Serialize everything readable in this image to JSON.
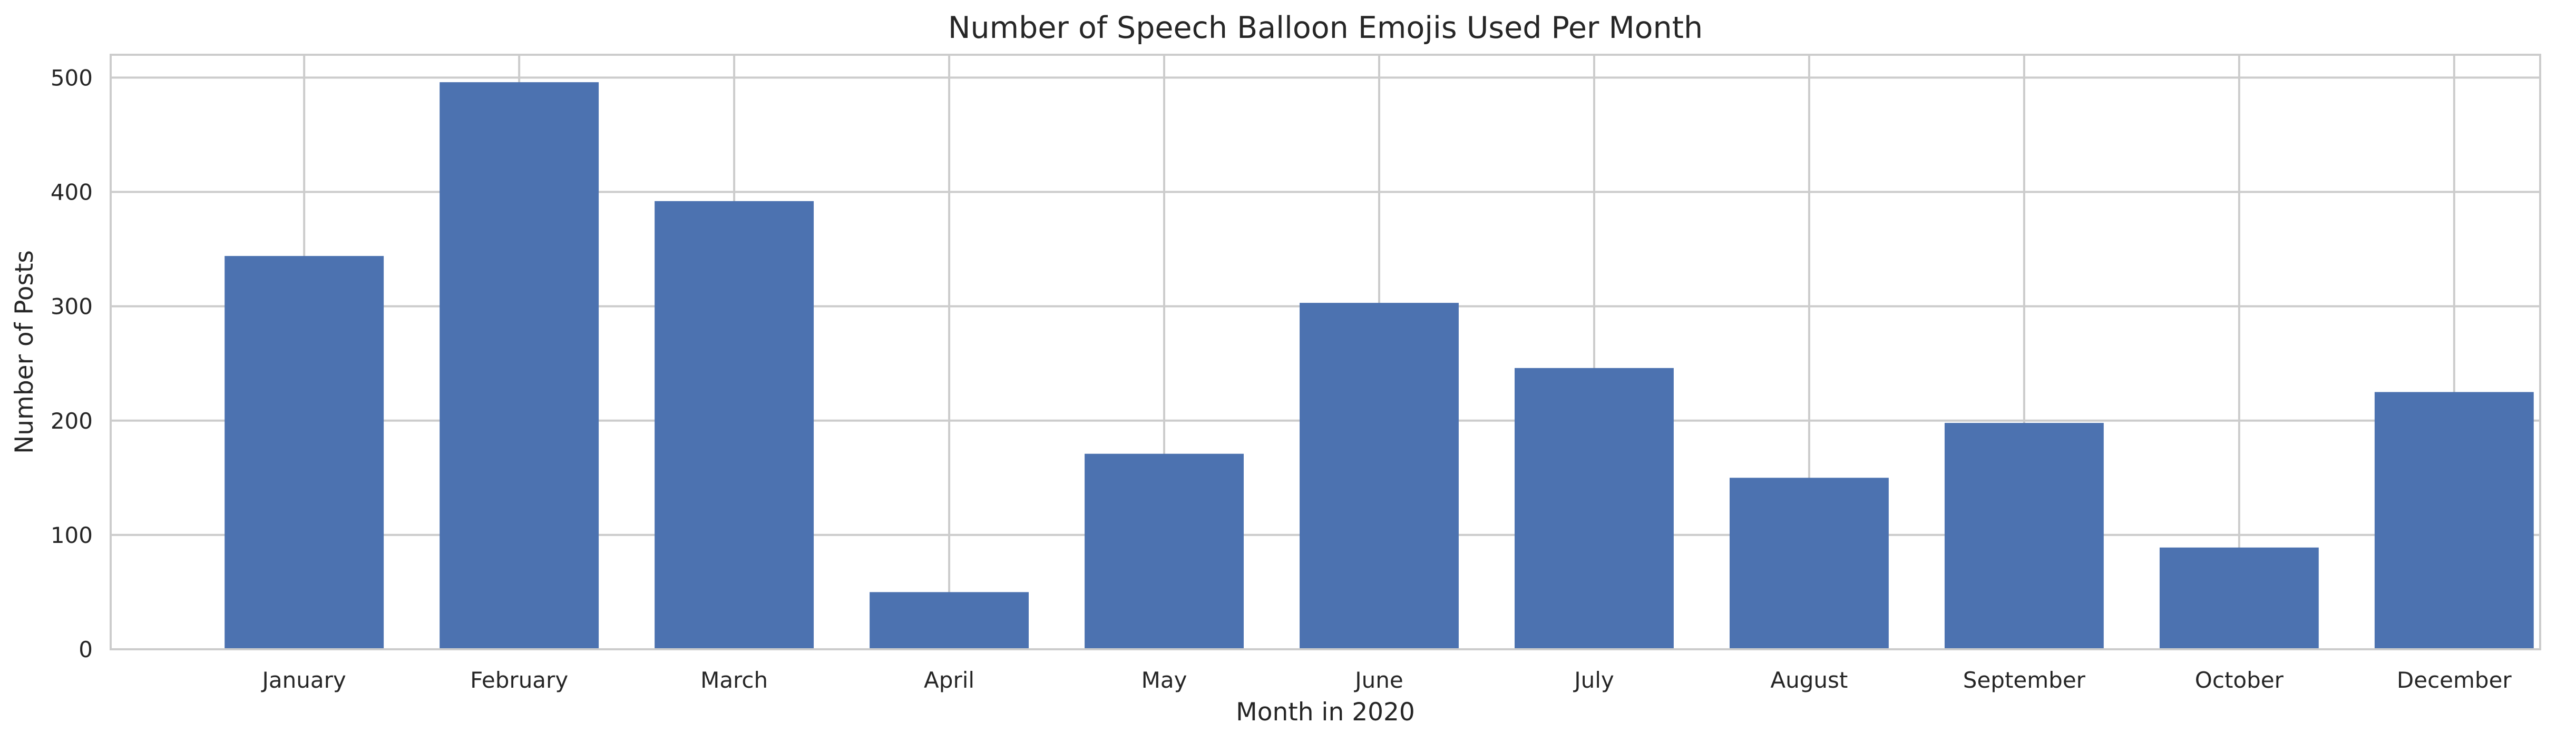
{
  "chart_data": {
    "type": "bar",
    "title": "Number of Speech Balloon Emojis Used Per Month",
    "xlabel": "Month in 2020",
    "ylabel": "Number of Posts",
    "categories": [
      "January",
      "February",
      "March",
      "April",
      "May",
      "June",
      "July",
      "August",
      "September",
      "October",
      "December"
    ],
    "values": [
      344,
      496,
      392,
      50,
      171,
      303,
      246,
      150,
      198,
      89,
      225
    ],
    "ylim": [
      0,
      520
    ],
    "yticks": [
      0,
      100,
      200,
      300,
      400,
      500
    ],
    "grid": true,
    "color": "#4c72b0"
  }
}
